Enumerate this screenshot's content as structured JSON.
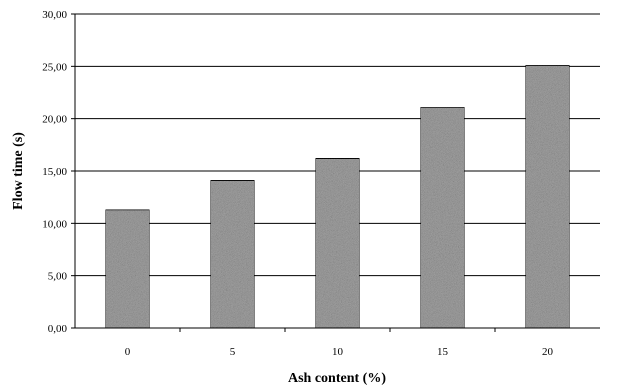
{
  "chart_data": {
    "type": "bar",
    "title": "",
    "xlabel": "Ash content (%)",
    "ylabel": "Flow time (s)",
    "categories": [
      "0",
      "5",
      "10",
      "15",
      "20"
    ],
    "values": [
      11.3,
      14.1,
      16.2,
      21.1,
      25.1
    ],
    "ylim": [
      0,
      30
    ],
    "yticks": [
      "0,00",
      "5,00",
      "10,00",
      "15,00",
      "20,00",
      "25,00",
      "30,00"
    ],
    "grid": true,
    "legend": "none",
    "bar_color": "#a6a6a6"
  }
}
